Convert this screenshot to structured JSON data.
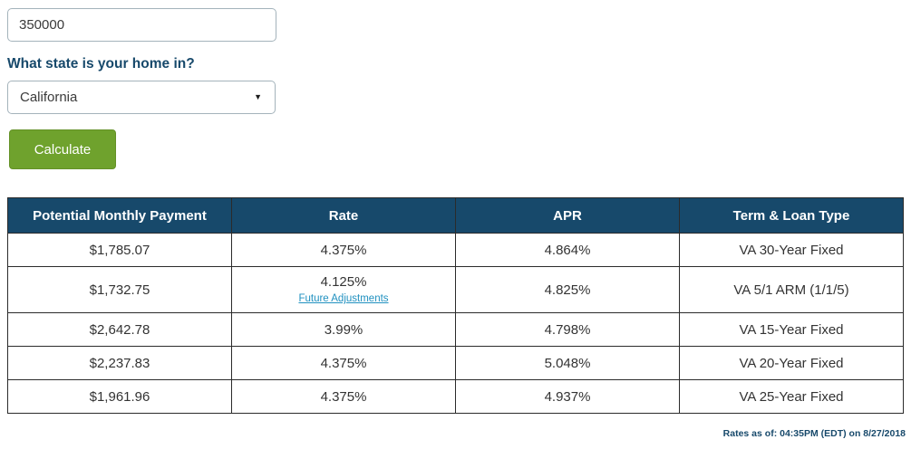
{
  "form": {
    "loan_amount_input": {
      "value": "350000"
    },
    "state_question_label": "What state is your home in?",
    "state_select": {
      "selected_value": "California",
      "dropdown_arrow": "▼"
    },
    "calculate_button_label": "Calculate"
  },
  "rates_table": {
    "columns": [
      "Potential Monthly Payment",
      "Rate",
      "APR",
      "Term & Loan Type"
    ],
    "rows": [
      {
        "payment": "$1,785.07",
        "rate": "4.375%",
        "rate_link": "",
        "apr": "4.864%",
        "term": "VA 30-Year Fixed"
      },
      {
        "payment": "$1,732.75",
        "rate": "4.125%",
        "rate_link": "Future Adjustments",
        "apr": "4.825%",
        "term": "VA 5/1 ARM (1/1/5)"
      },
      {
        "payment": "$2,642.78",
        "rate": "3.99%",
        "rate_link": "",
        "apr": "4.798%",
        "term": "VA 15-Year Fixed"
      },
      {
        "payment": "$2,237.83",
        "rate": "4.375%",
        "rate_link": "",
        "apr": "5.048%",
        "term": "VA 20-Year Fixed"
      },
      {
        "payment": "$1,961.96",
        "rate": "4.375%",
        "rate_link": "",
        "apr": "4.937%",
        "term": "VA 25-Year Fixed"
      }
    ]
  },
  "footer": {
    "rates_as_of": "Rates as of: 04:35PM (EDT) on 8/27/2018"
  },
  "colors": {
    "table_header_bg": "#17496b",
    "button_green": "#6fa22d",
    "link_teal": "#2191c0",
    "label_navy": "#17496b",
    "input_border": "#a4b3bb",
    "cell_border": "#2b2b2b"
  }
}
